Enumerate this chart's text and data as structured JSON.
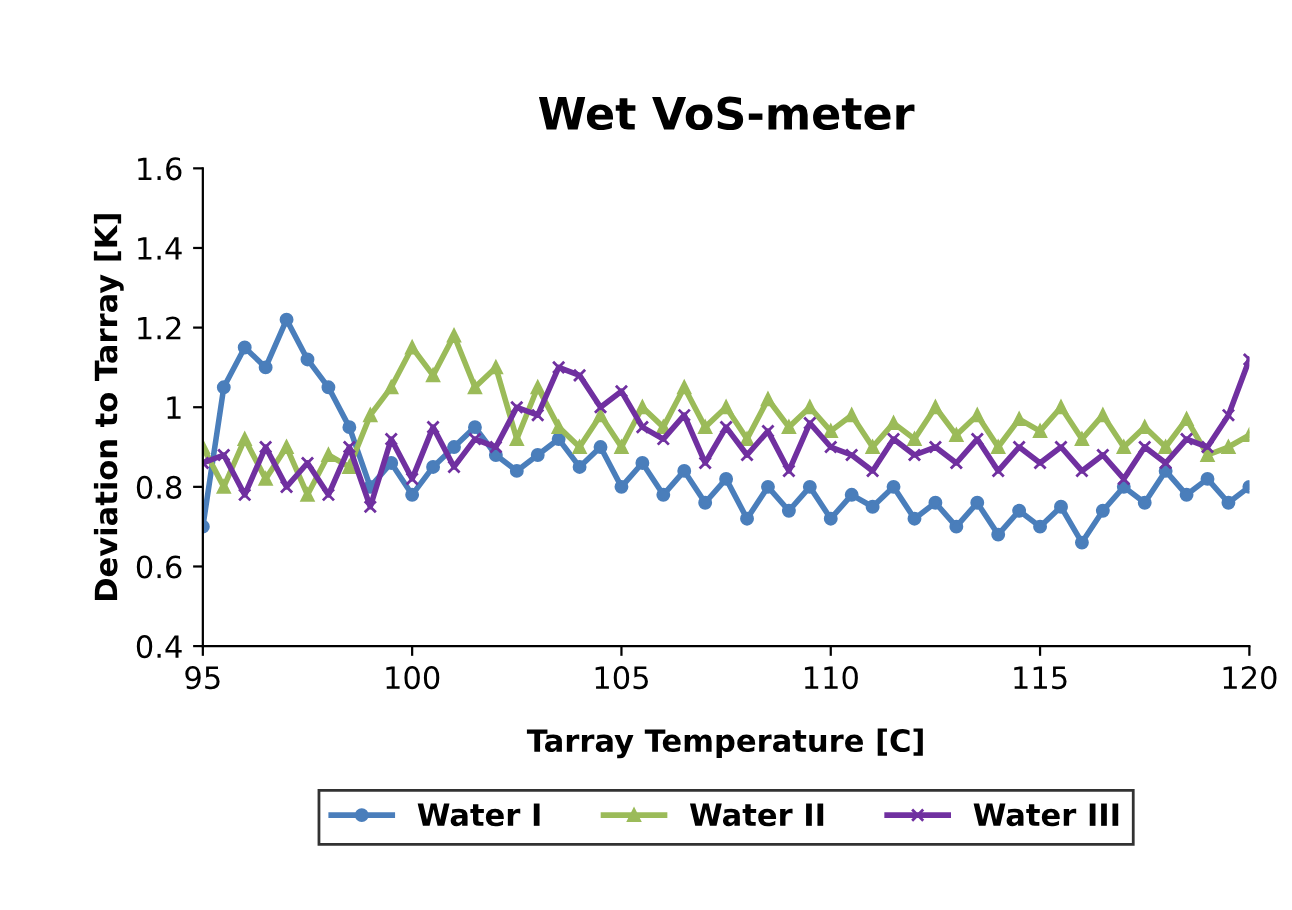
{
  "chart_data": {
    "type": "line",
    "title": "Wet VoS-meter",
    "xlabel": "Tarray Temperature [C]",
    "ylabel": "Deviation to Tarray [K]",
    "x": [
      95,
      95.5,
      96,
      96.5,
      97,
      97.5,
      98,
      98.5,
      99,
      99.5,
      100,
      100.5,
      101,
      101.5,
      102,
      102.5,
      103,
      103.5,
      104,
      104.5,
      105,
      105.5,
      106,
      106.5,
      107,
      107.5,
      108,
      108.5,
      109,
      109.5,
      110,
      110.5,
      111,
      111.5,
      112,
      112.5,
      113,
      113.5,
      114,
      114.5,
      115,
      115.5,
      116,
      116.5,
      117,
      117.5,
      118,
      118.5,
      119,
      119.5,
      120
    ],
    "series": [
      {
        "name": "Water I",
        "color": "#4a7ebb",
        "marker": "circle",
        "values": [
          0.7,
          1.05,
          1.15,
          1.1,
          1.22,
          1.12,
          1.05,
          0.95,
          0.8,
          0.86,
          0.78,
          0.85,
          0.9,
          0.95,
          0.88,
          0.84,
          0.88,
          0.92,
          0.85,
          0.9,
          0.8,
          0.86,
          0.78,
          0.84,
          0.76,
          0.82,
          0.72,
          0.8,
          0.74,
          0.8,
          0.72,
          0.78,
          0.75,
          0.8,
          0.72,
          0.76,
          0.7,
          0.76,
          0.68,
          0.74,
          0.7,
          0.75,
          0.66,
          0.74,
          0.8,
          0.76,
          0.84,
          0.78,
          0.82,
          0.76,
          0.8
        ]
      },
      {
        "name": "Water II",
        "color": "#9bbb59",
        "marker": "triangle",
        "values": [
          0.9,
          0.8,
          0.92,
          0.82,
          0.9,
          0.78,
          0.88,
          0.85,
          0.98,
          1.05,
          1.15,
          1.08,
          1.18,
          1.05,
          1.1,
          0.92,
          1.05,
          0.95,
          0.9,
          0.98,
          0.9,
          1.0,
          0.95,
          1.05,
          0.95,
          1.0,
          0.92,
          1.02,
          0.95,
          1.0,
          0.94,
          0.98,
          0.9,
          0.96,
          0.92,
          1.0,
          0.93,
          0.98,
          0.9,
          0.97,
          0.94,
          1.0,
          0.92,
          0.98,
          0.9,
          0.95,
          0.9,
          0.97,
          0.88,
          0.9,
          0.93
        ]
      },
      {
        "name": "Water III",
        "color": "#7030a0",
        "marker": "cross",
        "values": [
          0.86,
          0.88,
          0.78,
          0.9,
          0.8,
          0.86,
          0.78,
          0.9,
          0.75,
          0.92,
          0.82,
          0.95,
          0.85,
          0.92,
          0.9,
          1.0,
          0.98,
          1.1,
          1.08,
          1.0,
          1.04,
          0.95,
          0.92,
          0.98,
          0.86,
          0.95,
          0.88,
          0.94,
          0.84,
          0.96,
          0.9,
          0.88,
          0.84,
          0.92,
          0.88,
          0.9,
          0.86,
          0.92,
          0.84,
          0.9,
          0.86,
          0.9,
          0.84,
          0.88,
          0.82,
          0.9,
          0.86,
          0.92,
          0.9,
          0.98,
          1.12
        ]
      }
    ],
    "xlim": [
      95,
      120
    ],
    "xticks": [
      95,
      100,
      105,
      110,
      115,
      120
    ],
    "ylim": [
      0.4,
      1.6
    ],
    "yticks": [
      0.4,
      0.6,
      0.8,
      {
        "value": 1.0,
        "label": "1"
      },
      1.2,
      1.4,
      1.6
    ],
    "grid": false,
    "legend": "bottom",
    "line_style": "solid"
  }
}
